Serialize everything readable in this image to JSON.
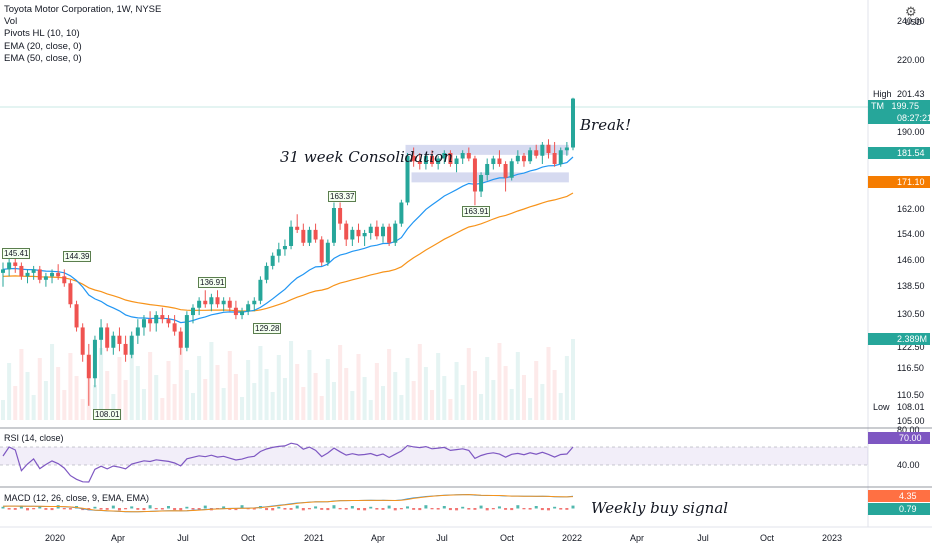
{
  "legend": {
    "title": "Toyota Motor Corporation, 1W, NYSE",
    "vol": "Vol",
    "pivots": "Pivots HL (10, 10)",
    "ema20": "EMA (20, close, 0)",
    "ema50": "EMA (50, close, 0)"
  },
  "rsi_label": "RSI (14, close)",
  "macd_label": "MACD (12, 26, close, 9, EMA, EMA)",
  "annotations": {
    "consolidation": "31 week Consolidation",
    "break": "Break!",
    "buy_signal": "Weekly buy signal"
  },
  "axis": {
    "currency": "USD",
    "price_ticks": [
      "240.00",
      "220.00",
      "201.43",
      "190.00",
      "162.00",
      "154.00",
      "146.00",
      "138.50",
      "130.50",
      "122.50",
      "116.50",
      "110.50",
      "105.00"
    ],
    "high_label": "High",
    "low_label": "Low",
    "low_value": "108.01",
    "rsi_ticks": [
      "80.00",
      "40.00"
    ],
    "time_labels": [
      "2020",
      "Apr",
      "Jul",
      "Oct",
      "2021",
      "Apr",
      "Jul",
      "Oct",
      "2022",
      "Apr",
      "Jul",
      "Oct",
      "2023"
    ]
  },
  "tags": {
    "ticker": "TM",
    "last_price": "199.75",
    "countdown": "08:27:21",
    "ema20": "181.54",
    "ema50": "171.10",
    "volume": "2.389M",
    "rsi": "70.00",
    "macd_a": "4.35",
    "macd_b": "0.79"
  },
  "pivots": [
    "145.41",
    "144.39",
    "136.91",
    "129.28",
    "163.37",
    "108.01",
    "163.91"
  ],
  "colors": {
    "up": "#26a69a",
    "down": "#ef5350",
    "ema20": "#2196f3",
    "ema50": "#f7931a",
    "rsi": "#7e57c2",
    "tm_tag": "#26a69a",
    "ema20_tag": "#26a69a",
    "ema50_tag": "#f57c00",
    "rsi_tag": "#7e57c2",
    "macd_a_tag": "#ff7043",
    "macd_b_tag": "#26a69a",
    "consolidation_box": "#c5cae9"
  },
  "chart_data": {
    "type": "candlestick",
    "symbol": "TM",
    "interval": "1W",
    "ylim": [
      105,
      240
    ],
    "consolidation_range": [
      173.5,
      183.5
    ],
    "candles": [
      [
        142,
        145,
        138,
        143
      ],
      [
        143,
        146,
        141,
        145
      ],
      [
        145,
        146.5,
        142,
        144
      ],
      [
        144,
        145,
        140,
        141
      ],
      [
        141,
        143,
        139,
        142
      ],
      [
        142,
        144,
        140,
        143
      ],
      [
        143,
        144,
        139,
        140
      ],
      [
        140,
        142,
        138,
        141
      ],
      [
        141,
        143,
        139,
        142
      ],
      [
        142,
        144.5,
        140,
        141
      ],
      [
        141,
        143,
        138,
        139
      ],
      [
        139,
        140,
        132,
        133
      ],
      [
        133,
        134,
        126,
        127
      ],
      [
        127,
        128,
        118,
        120
      ],
      [
        120,
        123,
        108,
        114
      ],
      [
        114,
        125,
        112,
        124
      ],
      [
        124,
        129,
        120,
        127
      ],
      [
        127,
        128,
        121,
        122
      ],
      [
        122,
        126,
        120,
        125
      ],
      [
        125,
        127,
        121,
        123
      ],
      [
        123,
        125,
        118,
        120
      ],
      [
        120,
        126,
        119,
        125
      ],
      [
        125,
        129,
        123,
        127
      ],
      [
        127,
        130,
        125,
        129
      ],
      [
        129,
        131,
        126,
        128
      ],
      [
        128,
        131,
        126,
        130
      ],
      [
        130,
        132,
        128,
        129
      ],
      [
        129,
        130,
        127,
        128
      ],
      [
        128,
        130,
        125,
        126
      ],
      [
        126,
        127,
        120,
        122
      ],
      [
        122,
        131,
        121,
        130
      ],
      [
        130,
        133,
        128,
        132
      ],
      [
        132,
        135,
        130,
        134
      ],
      [
        134,
        137,
        132,
        133
      ],
      [
        133,
        136,
        131,
        135
      ],
      [
        135,
        137,
        132,
        133
      ],
      [
        133,
        135,
        131,
        134
      ],
      [
        134,
        135,
        131,
        132
      ],
      [
        132,
        134,
        129,
        130
      ],
      [
        130,
        132,
        129,
        131
      ],
      [
        131,
        134,
        130,
        133
      ],
      [
        133,
        135,
        131,
        134
      ],
      [
        134,
        141,
        133,
        140
      ],
      [
        140,
        145,
        139,
        144
      ],
      [
        144,
        148,
        143,
        147
      ],
      [
        147,
        151,
        145,
        149
      ],
      [
        149,
        152,
        147,
        150
      ],
      [
        150,
        158,
        149,
        156
      ],
      [
        156,
        160,
        154,
        155
      ],
      [
        155,
        157,
        150,
        151
      ],
      [
        151,
        156,
        150,
        155
      ],
      [
        155,
        157,
        151,
        152
      ],
      [
        152,
        153,
        144,
        145
      ],
      [
        145,
        152,
        144,
        151
      ],
      [
        151,
        164,
        150,
        162
      ],
      [
        162,
        164,
        155,
        157
      ],
      [
        157,
        158,
        150,
        152
      ],
      [
        152,
        156,
        150,
        155
      ],
      [
        155,
        157,
        151,
        153
      ],
      [
        153,
        155,
        150,
        154
      ],
      [
        154,
        157,
        152,
        156
      ],
      [
        156,
        158,
        152,
        153
      ],
      [
        153,
        157,
        151,
        156
      ],
      [
        156,
        157,
        150,
        151
      ],
      [
        151,
        158,
        150,
        157
      ],
      [
        157,
        165,
        156,
        164
      ],
      [
        164,
        182,
        163,
        181
      ],
      [
        181,
        184,
        177,
        179
      ],
      [
        179,
        182,
        176,
        178
      ],
      [
        178,
        182,
        176,
        181
      ],
      [
        181,
        183,
        177,
        178
      ],
      [
        178,
        181,
        176,
        180
      ],
      [
        180,
        183,
        178,
        182
      ],
      [
        182,
        183,
        177,
        178
      ],
      [
        178,
        181,
        175,
        180
      ],
      [
        180,
        183,
        178,
        182
      ],
      [
        182,
        184,
        179,
        180
      ],
      [
        180,
        181,
        163,
        168
      ],
      [
        168,
        175,
        166,
        174
      ],
      [
        174,
        180,
        172,
        178
      ],
      [
        178,
        181,
        176,
        180
      ],
      [
        180,
        183,
        177,
        178
      ],
      [
        178,
        179,
        168,
        173
      ],
      [
        173,
        180,
        172,
        179
      ],
      [
        179,
        183,
        178,
        181
      ],
      [
        181,
        182,
        177,
        179
      ],
      [
        179,
        184,
        178,
        183
      ],
      [
        183,
        185,
        180,
        181
      ],
      [
        181,
        186,
        178,
        185
      ],
      [
        185,
        187,
        180,
        182
      ],
      [
        182,
        186,
        177,
        178
      ],
      [
        178,
        184,
        177,
        183
      ],
      [
        183,
        186,
        181,
        184
      ],
      [
        184,
        200,
        183,
        199.75
      ]
    ],
    "volume_last": "2.389M",
    "rsi_last": 70.0,
    "macd_last": [
      4.35,
      0.79
    ]
  }
}
